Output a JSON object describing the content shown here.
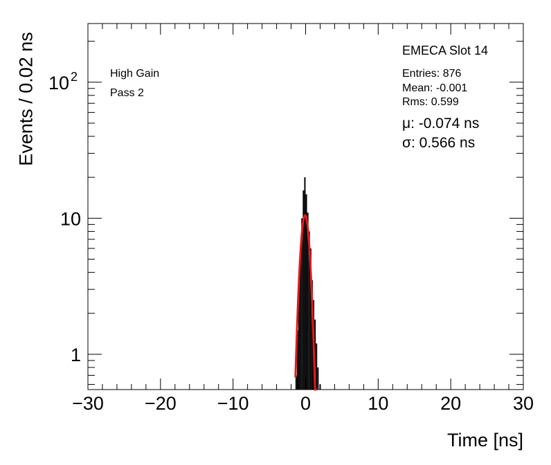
{
  "chart_data": {
    "type": "bar",
    "title": "EMECA Slot 14",
    "xlabel": "Time [ns]",
    "ylabel": "Events / 0.02 ns",
    "xlim": [
      -30,
      30
    ],
    "ylim": [
      0.55,
      270
    ],
    "yscale": "log",
    "xticks": [
      "−30",
      "−20",
      "−10",
      "0",
      "10",
      "20",
      "30"
    ],
    "xtick_values": [
      -30,
      -20,
      -10,
      0,
      10,
      20,
      30
    ],
    "yticks": [
      {
        "value": 1,
        "label": "1"
      },
      {
        "value": 10,
        "label": "10"
      },
      {
        "value": 100,
        "label": "10",
        "sup": "2"
      }
    ],
    "annotations": [
      "High Gain",
      "Pass 2"
    ],
    "stats": {
      "entries": "Entries: 876",
      "mean": "Mean: -0.001",
      "rms": "Rms: 0.599",
      "mu": "μ: -0.074 ns",
      "sigma": "σ: 0.566 ns"
    },
    "histogram": {
      "color": "#000000",
      "x": [
        -1.3,
        -1.1,
        -0.9,
        -0.7,
        -0.5,
        -0.3,
        -0.1,
        0.1,
        0.3,
        0.5,
        0.7,
        0.9,
        1.1,
        1.3,
        1.5,
        1.7,
        2.0
      ],
      "y": [
        0.7,
        1.5,
        3.5,
        6,
        10,
        16,
        20,
        15,
        11,
        8,
        6,
        3.5,
        2.5,
        1.8,
        1.2,
        0.8,
        0.6
      ]
    },
    "fit": {
      "name": "Gaussian fit",
      "color": "#e41a1c",
      "amplitude": 10.5,
      "mu": -0.074,
      "sigma": 0.566,
      "range": [
        -1.4,
        1.5
      ]
    }
  }
}
